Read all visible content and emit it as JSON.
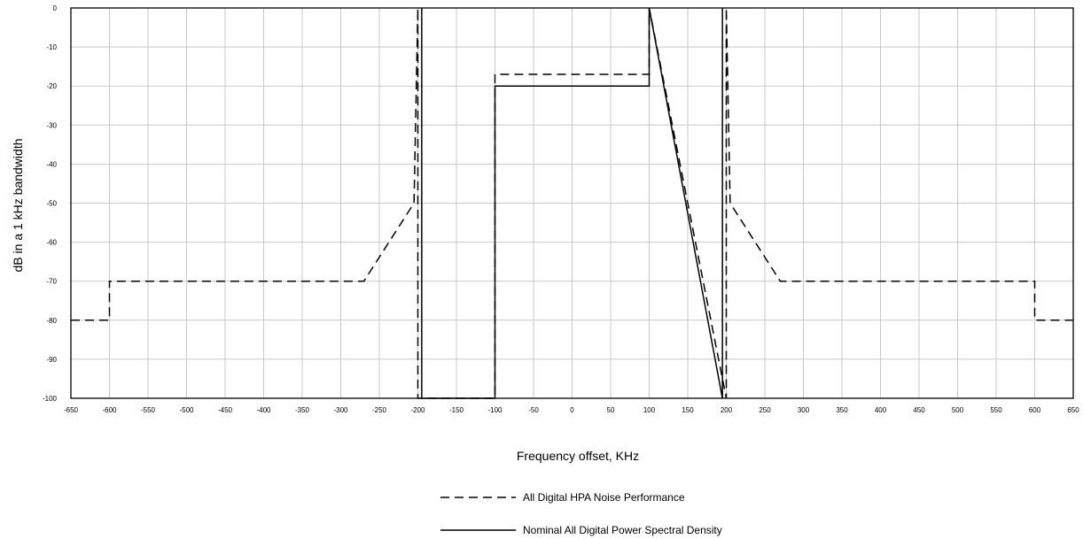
{
  "chart_data": {
    "type": "line",
    "title": "",
    "xlabel": "Frequency offset, KHz",
    "ylabel": "dB in a 1 kHz bandwidth",
    "xlim": [
      -650,
      650
    ],
    "ylim": [
      -100,
      0
    ],
    "xticks": [
      -650,
      -600,
      -550,
      -500,
      -450,
      -400,
      -350,
      -300,
      -250,
      -200,
      -150,
      -100,
      -50,
      0,
      50,
      100,
      150,
      200,
      250,
      300,
      350,
      400,
      450,
      500,
      550,
      600,
      650
    ],
    "yticks": [
      0,
      -10,
      -20,
      -30,
      -40,
      -50,
      -60,
      -70,
      -80,
      -90,
      -100
    ],
    "grid": true,
    "legend_position": "bottom",
    "series": [
      {
        "name": "All Digital HPA Noise Performance",
        "style": "dashed",
        "color": "#000000",
        "x": [
          -650,
          -600,
          -600,
          -270,
          -205,
          -200,
          -200,
          -100,
          -100,
          100,
          100,
          200,
          200,
          205,
          270,
          600,
          600,
          650
        ],
        "y": [
          -80,
          -80,
          -70,
          -70,
          -50,
          0,
          -100,
          -100,
          -17,
          -17,
          0,
          -100,
          0,
          -50,
          -70,
          -70,
          -80,
          -80
        ]
      },
      {
        "name": "Nominal All Digital Power Spectral Density",
        "style": "solid",
        "color": "#000000",
        "x": [
          -195,
          -195,
          -100,
          -100,
          100,
          100,
          195,
          195
        ],
        "y": [
          0,
          -100,
          -100,
          -20,
          -20,
          0,
          -100,
          0
        ]
      }
    ]
  }
}
